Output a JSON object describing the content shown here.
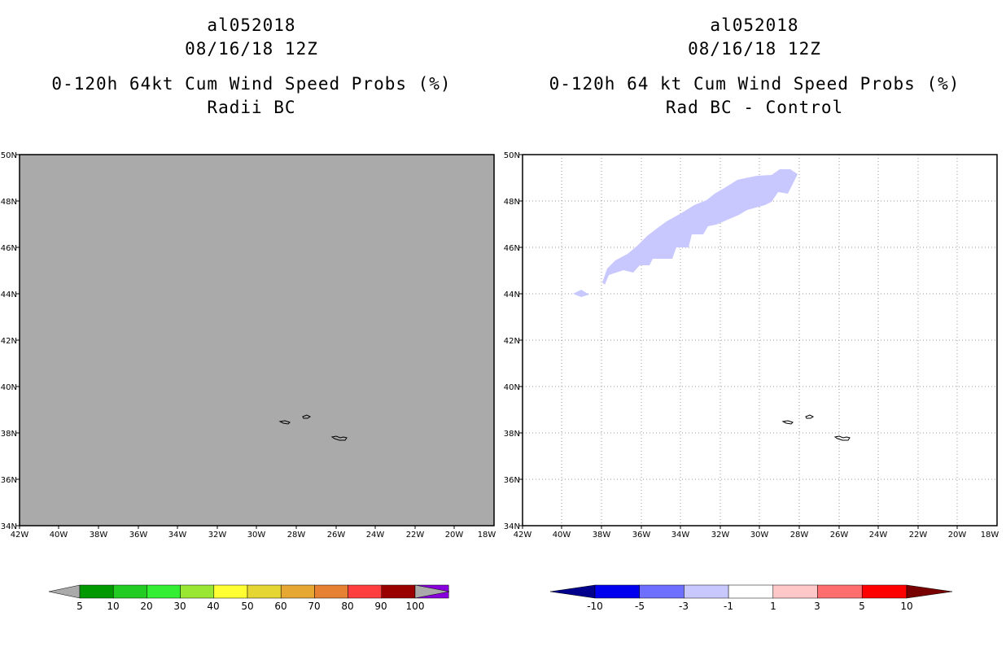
{
  "left_panel": {
    "storm_id": "al052018",
    "datetime": "08/16/18 12Z",
    "product": "0-120h 64kt Cum Wind Speed Probs (%)",
    "subtitle": "Radii BC",
    "lat_labels": [
      "50N",
      "48N",
      "46N",
      "44N",
      "42N",
      "40N",
      "38N",
      "36N",
      "34N"
    ],
    "lon_labels": [
      "42W",
      "40W",
      "38W",
      "36W",
      "34W",
      "32W",
      "30W",
      "28W",
      "26W",
      "24W",
      "22W",
      "20W",
      "18W"
    ],
    "background_color": "#aaaaaa",
    "colorbar": {
      "labels": [
        "5",
        "10",
        "20",
        "30",
        "40",
        "50",
        "60",
        "70",
        "80",
        "90",
        "100"
      ],
      "colors": [
        "#009900",
        "#22cc22",
        "#33ee33",
        "#99e633",
        "#ffff33",
        "#e6d633",
        "#e6a833",
        "#e68033",
        "#ff3f3f",
        "#990000",
        "#8800dd"
      ],
      "end_color": "#aaaaaa"
    }
  },
  "right_panel": {
    "storm_id": "al052018",
    "datetime": "08/16/18 12Z",
    "product": "0-120h 64 kt Cum Wind Speed Probs (%)",
    "subtitle": "Rad BC - Control",
    "lat_labels": [
      "50N",
      "48N",
      "46N",
      "44N",
      "42N",
      "40N",
      "38N",
      "36N",
      "34N"
    ],
    "lon_labels": [
      "42W",
      "40W",
      "38W",
      "36W",
      "34W",
      "32W",
      "30W",
      "28W",
      "26W",
      "24W",
      "22W",
      "20W",
      "18W"
    ],
    "shading_color": "#c8c8ff",
    "colorbar": {
      "labels": [
        "-10",
        "-5",
        "-3",
        "-1",
        "1",
        "3",
        "5",
        "10"
      ],
      "colors": [
        "#0000ee",
        "#6e6eff",
        "#c8c8ff",
        "#ffffff",
        "#ffc8c8",
        "#ff6e6e",
        "#ff0000"
      ],
      "low_end_color": "#00008c",
      "high_end_color": "#780000"
    }
  }
}
